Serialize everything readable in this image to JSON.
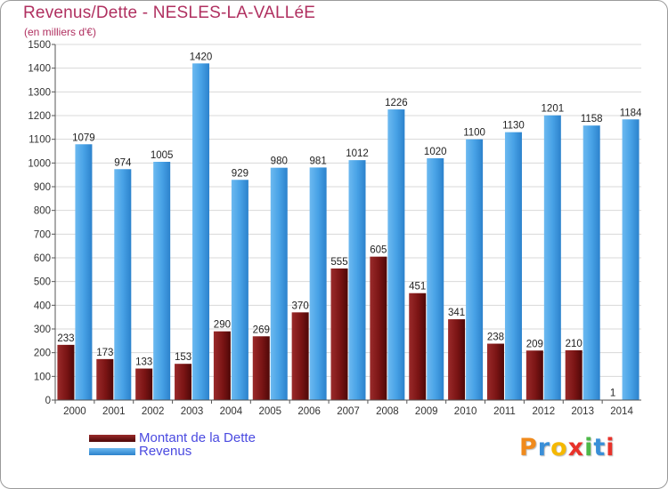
{
  "chart_data": {
    "type": "bar",
    "title": "Revenus/Dette - NESLES-LA-VALLéE",
    "subtitle": "(en milliers d'€)",
    "categories": [
      "2000",
      "2001",
      "2002",
      "2003",
      "2004",
      "2005",
      "2006",
      "2007",
      "2008",
      "2009",
      "2010",
      "2011",
      "2012",
      "2013",
      "2014"
    ],
    "series": [
      {
        "name": "Montant de la Dette",
        "color": "#7a1414",
        "values": [
          233,
          173,
          133,
          153,
          290,
          269,
          370,
          555,
          605,
          451,
          341,
          238,
          209,
          210,
          1
        ]
      },
      {
        "name": "Revenus",
        "color": "#3f9be3",
        "values": [
          1079,
          974,
          1005,
          1420,
          929,
          980,
          981,
          1012,
          1226,
          1020,
          1100,
          1130,
          1201,
          1158,
          1184
        ]
      }
    ],
    "ylim": [
      0,
      1500
    ],
    "yticks": [
      0,
      100,
      200,
      300,
      400,
      500,
      600,
      700,
      800,
      900,
      1000,
      1100,
      1200,
      1300,
      1400,
      1500
    ],
    "grid": true,
    "legend_position": "bottom-left"
  },
  "logo": {
    "letters": [
      "P",
      "r",
      "o",
      "x",
      "i",
      "t",
      "i"
    ],
    "colors": [
      "#f08a1c",
      "#3a8fd8",
      "#f5b800",
      "#e8322a",
      "#4db848",
      "#3a8fd8",
      "#e8322a"
    ]
  }
}
